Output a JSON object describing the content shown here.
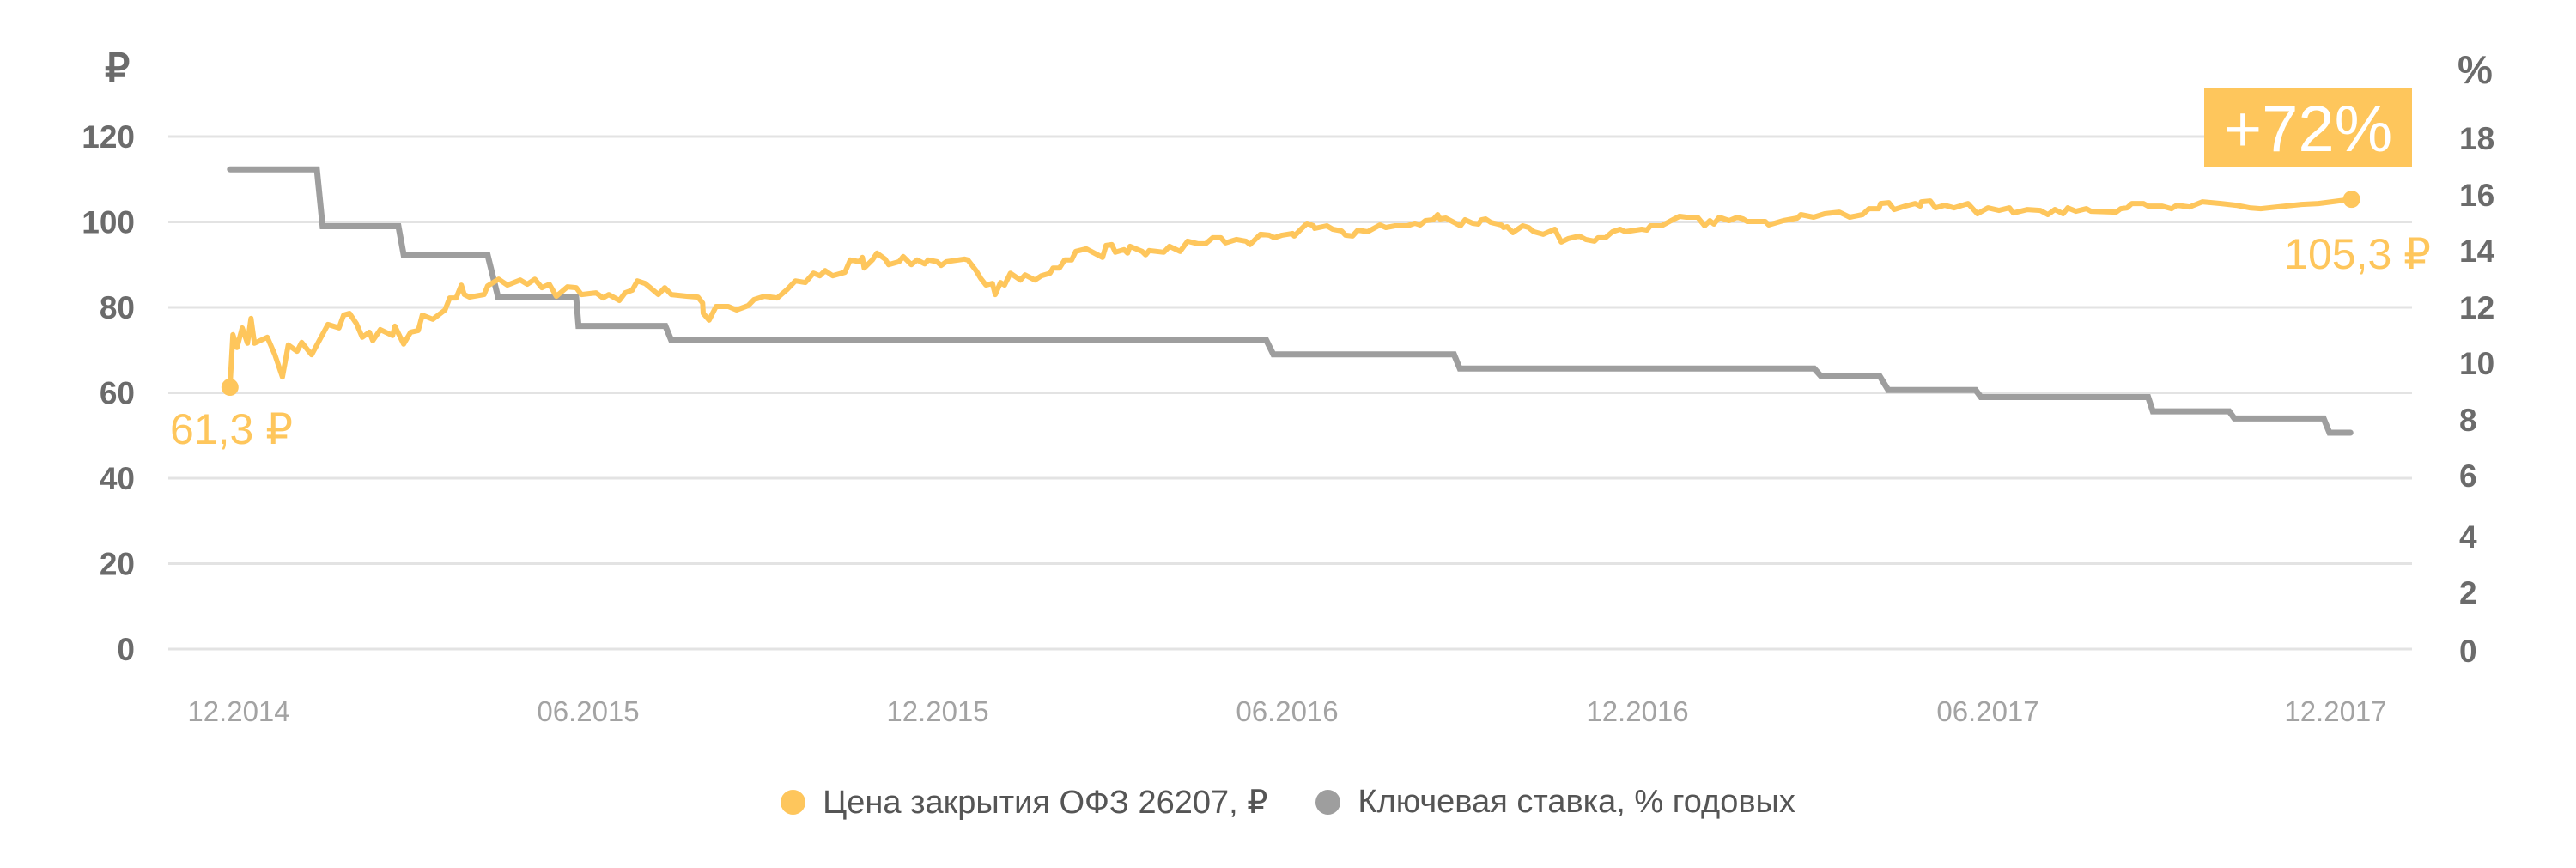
{
  "chart_data": {
    "type": "line",
    "title": "",
    "xlabel": "",
    "ylabel_left": "₽",
    "ylabel_right": "%",
    "ylim_left": [
      0,
      120
    ],
    "ylim_right": [
      0,
      18
    ],
    "grid": true,
    "legend_position": "bottom",
    "x_unit": "months since 12.2014",
    "x_ticks": [
      "12.2014",
      "06.2015",
      "12.2015",
      "06.2016",
      "12.2016",
      "06.2017",
      "12.2017"
    ],
    "y_ticks_left": [
      "120",
      "100",
      "80",
      "60",
      "40",
      "20",
      "0"
    ],
    "y_ticks_right": [
      "18",
      "16",
      "14",
      "12",
      "10",
      "8",
      "6",
      "4",
      "2",
      "0"
    ],
    "annotations": {
      "start_value": "61,3 ₽",
      "end_value": "105,3 ₽",
      "growth_badge": "+72%"
    },
    "series": [
      {
        "name": "Цена закрытия ОФЗ 26207, ₽",
        "axis": "left",
        "color": "#fec65c",
        "points": [
          [
            -0.15,
            61.3
          ],
          [
            -0.1,
            73.6
          ],
          [
            -0.03,
            70.6
          ],
          [
            0.06,
            75.2
          ],
          [
            0.15,
            71.6
          ],
          [
            0.21,
            77.4
          ],
          [
            0.27,
            71.6
          ],
          [
            0.49,
            73.0
          ],
          [
            0.62,
            68.9
          ],
          [
            0.75,
            63.7
          ],
          [
            0.85,
            71.2
          ],
          [
            1.0,
            69.7
          ],
          [
            1.08,
            71.8
          ],
          [
            1.25,
            68.9
          ],
          [
            1.38,
            72.2
          ],
          [
            1.53,
            76.0
          ],
          [
            1.72,
            75.2
          ],
          [
            1.8,
            78.2
          ],
          [
            1.9,
            78.6
          ],
          [
            2.02,
            76.2
          ],
          [
            2.12,
            73.0
          ],
          [
            2.24,
            74.2
          ],
          [
            2.3,
            72.2
          ],
          [
            2.43,
            74.8
          ],
          [
            2.64,
            73.4
          ],
          [
            2.68,
            75.6
          ],
          [
            2.83,
            71.4
          ],
          [
            2.95,
            74.2
          ],
          [
            3.08,
            74.6
          ],
          [
            3.15,
            78.2
          ],
          [
            3.33,
            77.2
          ],
          [
            3.54,
            79.4
          ],
          [
            3.62,
            82.2
          ],
          [
            3.73,
            82.2
          ],
          [
            3.82,
            85.2
          ],
          [
            3.87,
            83.0
          ],
          [
            3.96,
            82.4
          ],
          [
            4.21,
            83.0
          ],
          [
            4.27,
            85.0
          ],
          [
            4.46,
            86.6
          ],
          [
            4.61,
            85.2
          ],
          [
            4.83,
            86.4
          ],
          [
            4.95,
            85.4
          ],
          [
            5.08,
            86.6
          ],
          [
            5.2,
            84.6
          ],
          [
            5.33,
            85.4
          ],
          [
            5.45,
            82.6
          ],
          [
            5.64,
            84.8
          ],
          [
            5.79,
            84.6
          ],
          [
            5.88,
            83.0
          ],
          [
            6.13,
            83.4
          ],
          [
            6.25,
            82.2
          ],
          [
            6.35,
            83.0
          ],
          [
            6.53,
            81.6
          ],
          [
            6.63,
            83.4
          ],
          [
            6.75,
            84.0
          ],
          [
            6.84,
            86.2
          ],
          [
            6.97,
            85.6
          ],
          [
            7.06,
            84.6
          ],
          [
            7.2,
            83.0
          ],
          [
            7.31,
            84.6
          ],
          [
            7.42,
            83.0
          ],
          [
            7.7,
            82.6
          ],
          [
            7.88,
            82.4
          ],
          [
            7.96,
            81.0
          ],
          [
            7.97,
            78.6
          ],
          [
            8.07,
            77.0
          ],
          [
            8.19,
            80.2
          ],
          [
            8.4,
            80.2
          ],
          [
            8.54,
            79.4
          ],
          [
            8.74,
            80.4
          ],
          [
            8.84,
            81.8
          ],
          [
            9.02,
            82.6
          ],
          [
            9.24,
            82.2
          ],
          [
            9.41,
            84.2
          ],
          [
            9.55,
            86.2
          ],
          [
            9.72,
            85.8
          ],
          [
            9.86,
            88.0
          ],
          [
            9.97,
            87.4
          ],
          [
            10.06,
            88.6
          ],
          [
            10.19,
            87.4
          ],
          [
            10.4,
            88.2
          ],
          [
            10.49,
            91.1
          ],
          [
            10.65,
            90.7
          ],
          [
            10.7,
            91.7
          ],
          [
            10.73,
            89.2
          ],
          [
            10.87,
            91.1
          ],
          [
            10.95,
            92.7
          ],
          [
            11.09,
            91.3
          ],
          [
            11.15,
            90.0
          ],
          [
            11.33,
            90.7
          ],
          [
            11.4,
            91.9
          ],
          [
            11.54,
            90.0
          ],
          [
            11.64,
            91.1
          ],
          [
            11.77,
            90.2
          ],
          [
            11.83,
            91.1
          ],
          [
            11.98,
            90.7
          ],
          [
            12.05,
            89.8
          ],
          [
            12.14,
            90.7
          ],
          [
            12.45,
            91.3
          ],
          [
            12.51,
            91.1
          ],
          [
            12.65,
            88.6
          ],
          [
            12.73,
            86.8
          ],
          [
            12.82,
            85.2
          ],
          [
            12.93,
            85.6
          ],
          [
            12.98,
            83.0
          ],
          [
            13.07,
            85.8
          ],
          [
            13.14,
            85.2
          ],
          [
            13.24,
            88.0
          ],
          [
            13.41,
            86.4
          ],
          [
            13.49,
            87.6
          ],
          [
            13.66,
            86.4
          ],
          [
            13.77,
            87.4
          ],
          [
            13.92,
            88.0
          ],
          [
            13.97,
            89.2
          ],
          [
            14.08,
            89.2
          ],
          [
            14.17,
            91.1
          ],
          [
            14.29,
            91.1
          ],
          [
            14.36,
            93.1
          ],
          [
            14.54,
            93.7
          ],
          [
            14.82,
            91.7
          ],
          [
            14.88,
            94.5
          ],
          [
            14.98,
            94.7
          ],
          [
            15.04,
            92.9
          ],
          [
            15.19,
            93.5
          ],
          [
            15.25,
            92.7
          ],
          [
            15.29,
            94.3
          ],
          [
            15.5,
            93.1
          ],
          [
            15.56,
            92.3
          ],
          [
            15.62,
            93.3
          ],
          [
            15.87,
            92.9
          ],
          [
            15.97,
            94.3
          ],
          [
            16.15,
            93.1
          ],
          [
            16.28,
            95.5
          ],
          [
            16.46,
            94.9
          ],
          [
            16.59,
            94.9
          ],
          [
            16.71,
            96.3
          ],
          [
            16.85,
            96.3
          ],
          [
            16.93,
            95.1
          ],
          [
            17.12,
            95.9
          ],
          [
            17.28,
            95.5
          ],
          [
            17.35,
            94.7
          ],
          [
            17.53,
            97.1
          ],
          [
            17.68,
            96.9
          ],
          [
            17.77,
            96.3
          ],
          [
            17.9,
            96.9
          ],
          [
            18.08,
            97.3
          ],
          [
            18.11,
            96.7
          ],
          [
            18.21,
            98.1
          ],
          [
            18.33,
            99.7
          ],
          [
            18.44,
            99.1
          ],
          [
            18.46,
            98.5
          ],
          [
            18.67,
            99.1
          ],
          [
            18.77,
            98.3
          ],
          [
            18.92,
            97.9
          ],
          [
            18.99,
            96.9
          ],
          [
            19.11,
            96.7
          ],
          [
            19.2,
            98.1
          ],
          [
            19.37,
            97.7
          ],
          [
            19.58,
            99.3
          ],
          [
            19.68,
            98.7
          ],
          [
            19.84,
            99.1
          ],
          [
            20.05,
            99.1
          ],
          [
            20.18,
            99.7
          ],
          [
            20.27,
            99.3
          ],
          [
            20.36,
            100.3
          ],
          [
            20.49,
            100.5
          ],
          [
            20.57,
            101.7
          ],
          [
            20.61,
            100.7
          ],
          [
            20.71,
            100.9
          ],
          [
            20.96,
            99.1
          ],
          [
            21.04,
            100.5
          ],
          [
            21.17,
            99.7
          ],
          [
            21.27,
            99.5
          ],
          [
            21.32,
            100.5
          ],
          [
            21.39,
            100.7
          ],
          [
            21.48,
            99.9
          ],
          [
            21.66,
            99.3
          ],
          [
            21.7,
            98.7
          ],
          [
            21.76,
            98.9
          ],
          [
            21.86,
            97.5
          ],
          [
            22.03,
            99.1
          ],
          [
            22.13,
            98.7
          ],
          [
            22.22,
            97.7
          ],
          [
            22.38,
            97.1
          ],
          [
            22.58,
            98.3
          ],
          [
            22.69,
            95.3
          ],
          [
            22.81,
            96.1
          ],
          [
            23.0,
            96.7
          ],
          [
            23.11,
            95.9
          ],
          [
            23.26,
            95.5
          ],
          [
            23.32,
            96.3
          ],
          [
            23.45,
            96.3
          ],
          [
            23.57,
            97.7
          ],
          [
            23.7,
            98.3
          ],
          [
            23.79,
            97.7
          ],
          [
            23.97,
            98.1
          ],
          [
            24.07,
            98.3
          ],
          [
            24.16,
            98.1
          ],
          [
            24.22,
            99.1
          ],
          [
            24.41,
            99.1
          ],
          [
            24.63,
            100.7
          ],
          [
            24.72,
            101.3
          ],
          [
            24.84,
            101.1
          ],
          [
            25.03,
            101.1
          ],
          [
            25.15,
            99.1
          ],
          [
            25.24,
            100.3
          ],
          [
            25.31,
            99.5
          ],
          [
            25.4,
            101.1
          ],
          [
            25.57,
            100.3
          ],
          [
            25.71,
            101.1
          ],
          [
            25.81,
            100.7
          ],
          [
            25.88,
            100.1
          ],
          [
            26.19,
            100.1
          ],
          [
            26.25,
            99.3
          ],
          [
            26.5,
            100.3
          ],
          [
            26.74,
            100.9
          ],
          [
            26.8,
            101.7
          ],
          [
            27.02,
            101.1
          ],
          [
            27.21,
            101.9
          ],
          [
            27.46,
            102.3
          ],
          [
            27.64,
            101.1
          ],
          [
            27.86,
            101.7
          ],
          [
            27.97,
            103.1
          ],
          [
            28.14,
            103.1
          ],
          [
            28.17,
            104.3
          ],
          [
            28.31,
            104.5
          ],
          [
            28.4,
            102.9
          ],
          [
            28.59,
            103.7
          ],
          [
            28.76,
            104.3
          ],
          [
            28.85,
            103.7
          ],
          [
            28.87,
            104.7
          ],
          [
            29.02,
            104.9
          ],
          [
            29.11,
            103.3
          ],
          [
            29.27,
            103.9
          ],
          [
            29.43,
            103.3
          ],
          [
            29.67,
            104.3
          ],
          [
            29.83,
            101.9
          ],
          [
            30.01,
            103.3
          ],
          [
            30.2,
            102.7
          ],
          [
            30.38,
            103.3
          ],
          [
            30.45,
            102.1
          ],
          [
            30.69,
            102.9
          ],
          [
            30.91,
            102.7
          ],
          [
            31.04,
            101.7
          ],
          [
            31.16,
            102.9
          ],
          [
            31.3,
            101.9
          ],
          [
            31.38,
            103.3
          ],
          [
            31.52,
            102.5
          ],
          [
            31.7,
            103.1
          ],
          [
            31.78,
            102.5
          ],
          [
            32.21,
            102.3
          ],
          [
            32.29,
            103.1
          ],
          [
            32.4,
            103.3
          ],
          [
            32.48,
            104.3
          ],
          [
            32.68,
            104.3
          ],
          [
            32.76,
            103.7
          ],
          [
            33.0,
            103.7
          ],
          [
            33.16,
            103.1
          ],
          [
            33.25,
            103.9
          ],
          [
            33.47,
            103.5
          ],
          [
            33.69,
            104.7
          ],
          [
            34.01,
            104.3
          ],
          [
            34.27,
            103.9
          ],
          [
            34.5,
            103.3
          ],
          [
            34.69,
            103.1
          ],
          [
            35.39,
            104.1
          ],
          [
            35.68,
            104.3
          ],
          [
            35.91,
            104.7
          ],
          [
            36.25,
            105.3
          ]
        ]
      },
      {
        "name": "Ключевая ставка, % годовых",
        "axis": "right",
        "color": "#9e9e9e",
        "step": true,
        "steps": [
          [
            -0.15,
            1.34,
            17.0
          ],
          [
            1.44,
            2.74,
            15.0
          ],
          [
            2.83,
            4.27,
            14.0
          ],
          [
            4.45,
            5.79,
            12.5
          ],
          [
            5.83,
            7.32,
            11.5
          ],
          [
            7.42,
            17.63,
            11.0
          ],
          [
            17.75,
            20.85,
            10.5
          ],
          [
            20.95,
            27.03,
            10.0
          ],
          [
            27.14,
            28.15,
            9.75
          ],
          [
            28.3,
            29.8,
            9.25
          ],
          [
            29.89,
            32.76,
            9.0
          ],
          [
            32.84,
            34.15,
            8.5
          ],
          [
            34.24,
            35.77,
            8.25
          ],
          [
            35.87,
            36.23,
            7.75
          ]
        ]
      }
    ]
  },
  "axes": {
    "left_unit": "₽",
    "right_unit": "%",
    "left_ticks": [
      {
        "label": "120",
        "value": 120
      },
      {
        "label": "100",
        "value": 100
      },
      {
        "label": "80",
        "value": 80
      },
      {
        "label": "60",
        "value": 60
      },
      {
        "label": "40",
        "value": 40
      },
      {
        "label": "20",
        "value": 20
      },
      {
        "label": "0",
        "value": 0
      }
    ],
    "right_ticks": [
      "18",
      "16",
      "14",
      "12",
      "10",
      "8",
      "6",
      "4",
      "2",
      "0"
    ],
    "x_ticks": [
      "12.2014",
      "06.2015",
      "12.2015",
      "06.2016",
      "12.2016",
      "06.2017",
      "12.2017"
    ]
  },
  "annotations": {
    "start_label": "61,3 ₽",
    "end_label": "105,3 ₽",
    "badge": "+72%",
    "badge_color": "#fec65c"
  },
  "legend": {
    "items": [
      {
        "label": "Цена закрытия ОФЗ 26207, ₽",
        "color": "#fec65c"
      },
      {
        "label": "Ключевая ставка, % годовых",
        "color": "#9e9e9e"
      }
    ]
  }
}
